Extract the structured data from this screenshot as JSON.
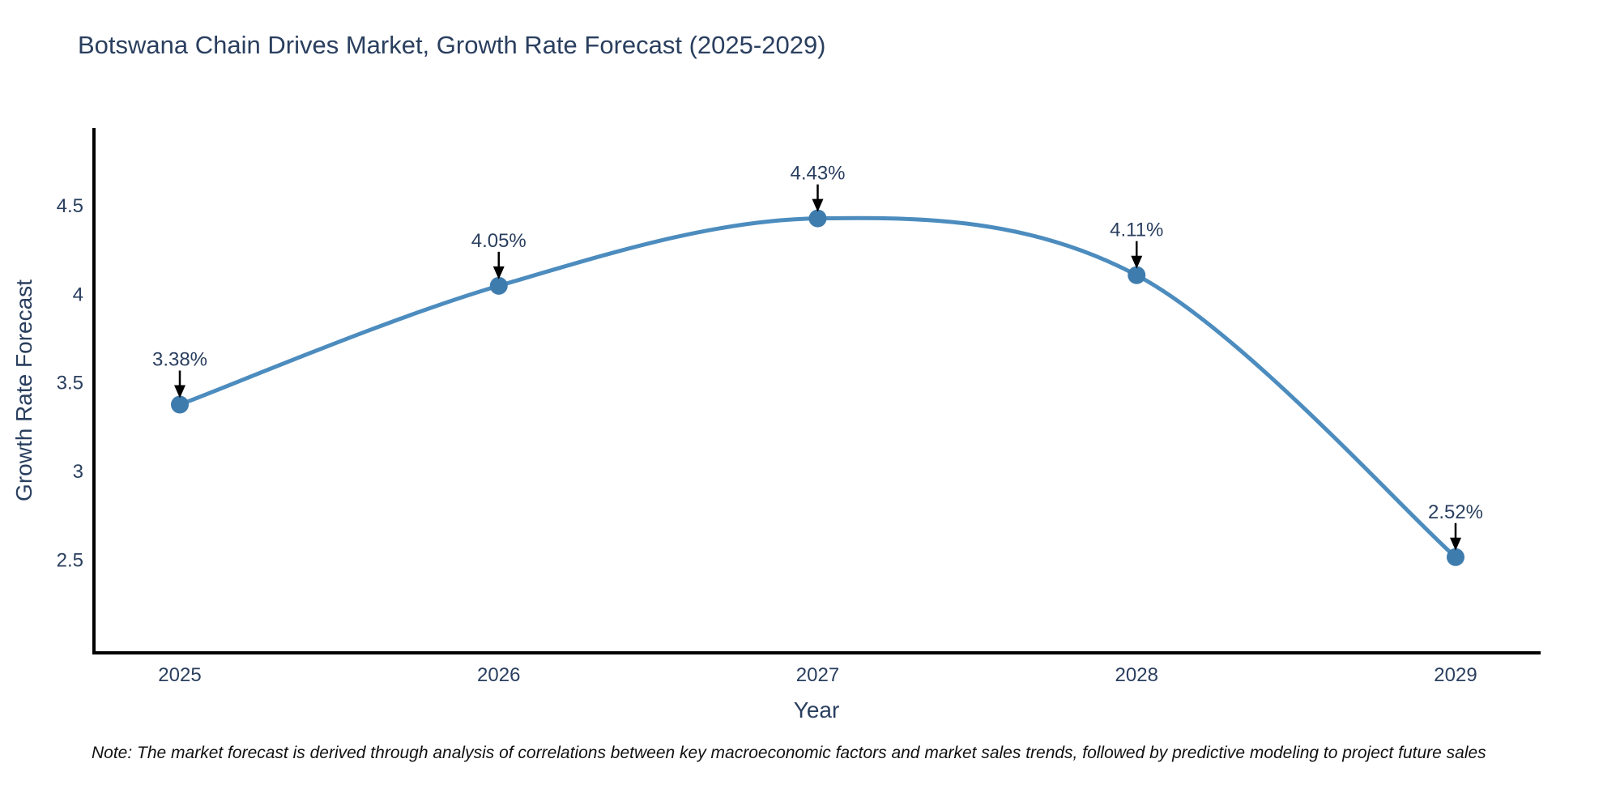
{
  "chart": {
    "colors": {
      "line": "#4c8cbe",
      "marker": "#3f7cae",
      "text": "#2a3f5f",
      "axis": "#000000",
      "arrow": "#000000",
      "background": "#ffffff"
    }
  },
  "chart_data": {
    "type": "line",
    "title": "Botswana Chain Drives Market, Growth Rate Forecast (2025-2029)",
    "xlabel": "Year",
    "ylabel": "Growth Rate Forecast",
    "x": [
      2025,
      2026,
      2027,
      2028,
      2029
    ],
    "xticklabels": [
      "2025",
      "2026",
      "2027",
      "2028",
      "2029"
    ],
    "values": [
      3.38,
      4.05,
      4.43,
      4.11,
      2.52
    ],
    "point_labels": [
      "3.38%",
      "4.05%",
      "4.43%",
      "4.11%",
      "2.52%"
    ],
    "yticks": [
      4.5,
      4,
      3.5,
      3,
      2.5
    ],
    "yticklabels": [
      "4.5",
      "4",
      "3.5",
      "3",
      "2.5"
    ],
    "ylim": [
      1.98,
      4.94
    ],
    "line_shape": "spline",
    "markers": true,
    "grid": false,
    "legend": false,
    "note": "Note: The market forecast is derived through analysis of correlations between key macroeconomic factors and market sales trends, followed by predictive modeling to project future sales"
  }
}
